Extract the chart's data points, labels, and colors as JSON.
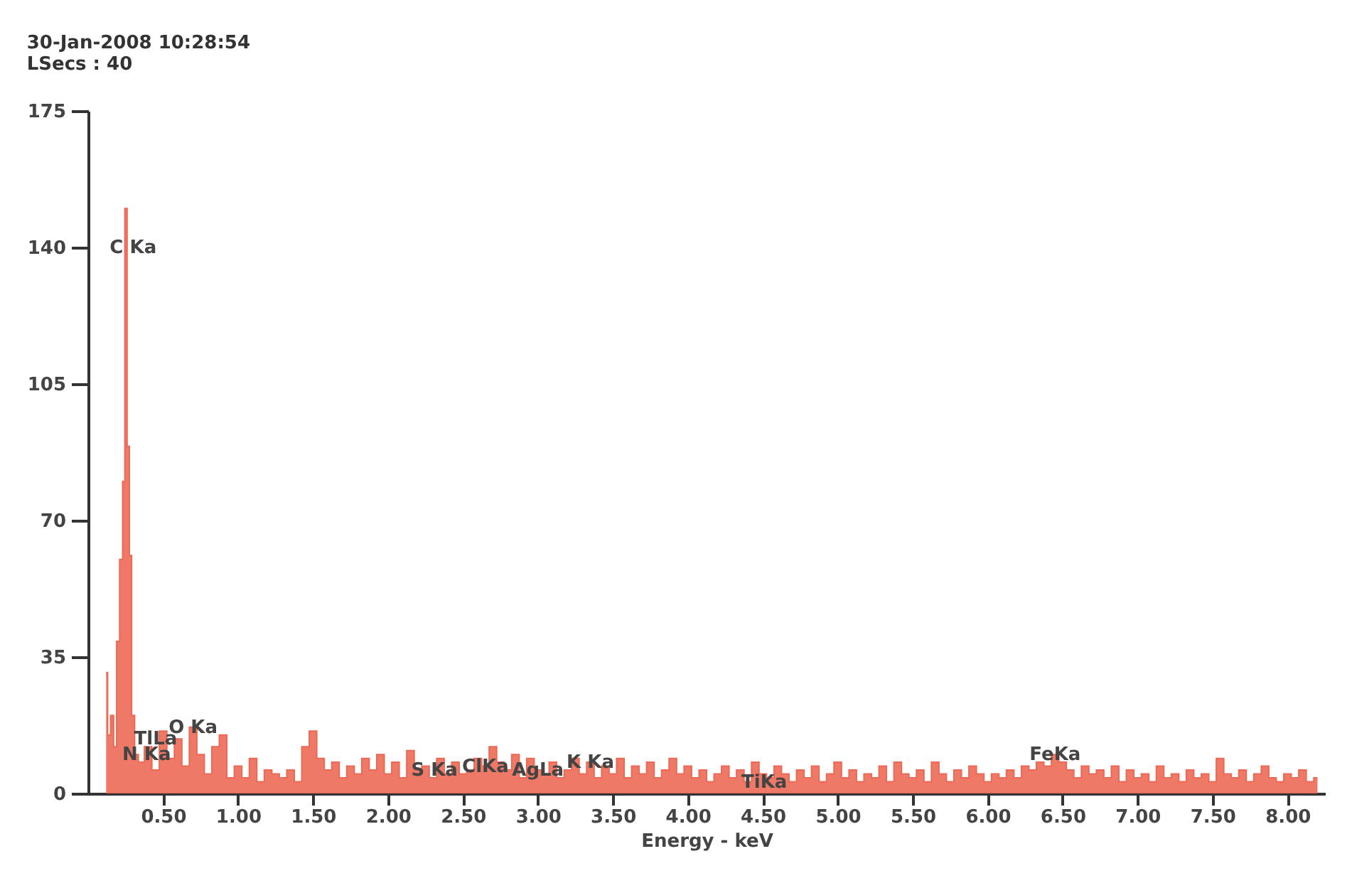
{
  "chart_data": {
    "type": "area",
    "title": "30-Jan-2008 10:28:54",
    "subtitle": "LSecs : 40",
    "xlabel": "Energy - keV",
    "xlim": [
      0,
      8.25
    ],
    "ylim": [
      0,
      175
    ],
    "xticks": [
      {
        "value": 0.5,
        "label": "0.50"
      },
      {
        "value": 1,
        "label": "1.00"
      },
      {
        "value": 1.5,
        "label": "1.50"
      },
      {
        "value": 2,
        "label": "2.00"
      },
      {
        "value": 2.5,
        "label": "2.50"
      },
      {
        "value": 3,
        "label": "3.00"
      },
      {
        "value": 3.5,
        "label": "3.50"
      },
      {
        "value": 4,
        "label": "4.00"
      },
      {
        "value": 4.5,
        "label": "4.50"
      },
      {
        "value": 5,
        "label": "5.00"
      },
      {
        "value": 5.5,
        "label": "5.50"
      },
      {
        "value": 6,
        "label": "6.00"
      },
      {
        "value": 6.5,
        "label": "6.50"
      },
      {
        "value": 7,
        "label": "7.00"
      },
      {
        "value": 7.5,
        "label": "7.50"
      },
      {
        "value": 8,
        "label": "8.00"
      }
    ],
    "yticks": [
      0,
      35,
      70,
      105,
      140,
      175
    ],
    "grid": false,
    "x": [
      0.12,
      0.14,
      0.16,
      0.18,
      0.2,
      0.22,
      0.24,
      0.25,
      0.27,
      0.28,
      0.3,
      0.32,
      0.35,
      0.4,
      0.45,
      0.5,
      0.55,
      0.6,
      0.65,
      0.7,
      0.75,
      0.8,
      0.85,
      0.9,
      0.95,
      1,
      1.05,
      1.1,
      1.15,
      1.2,
      1.25,
      1.3,
      1.35,
      1.4,
      1.45,
      1.5,
      1.55,
      1.6,
      1.65,
      1.7,
      1.75,
      1.8,
      1.85,
      1.9,
      1.95,
      2,
      2.05,
      2.1,
      2.15,
      2.2,
      2.25,
      2.3,
      2.35,
      2.4,
      2.45,
      2.5,
      2.55,
      2.6,
      2.65,
      2.7,
      2.75,
      2.8,
      2.85,
      2.9,
      2.95,
      3,
      3.05,
      3.1,
      3.15,
      3.2,
      3.25,
      3.3,
      3.35,
      3.4,
      3.45,
      3.5,
      3.55,
      3.6,
      3.65,
      3.7,
      3.75,
      3.8,
      3.85,
      3.9,
      3.95,
      4,
      4.05,
      4.1,
      4.15,
      4.2,
      4.25,
      4.3,
      4.35,
      4.4,
      4.45,
      4.5,
      4.55,
      4.6,
      4.65,
      4.7,
      4.75,
      4.8,
      4.85,
      4.9,
      4.95,
      5,
      5.05,
      5.1,
      5.15,
      5.2,
      5.25,
      5.3,
      5.35,
      5.4,
      5.45,
      5.5,
      5.55,
      5.6,
      5.65,
      5.7,
      5.75,
      5.8,
      5.85,
      5.9,
      5.95,
      6,
      6.05,
      6.1,
      6.15,
      6.2,
      6.25,
      6.3,
      6.35,
      6.4,
      6.45,
      6.5,
      6.55,
      6.6,
      6.65,
      6.7,
      6.75,
      6.8,
      6.85,
      6.9,
      6.95,
      7,
      7.05,
      7.1,
      7.15,
      7.2,
      7.25,
      7.3,
      7.35,
      7.4,
      7.45,
      7.5,
      7.55,
      7.6,
      7.65,
      7.7,
      7.75,
      7.8,
      7.85,
      7.9,
      7.95,
      8,
      8.05,
      8.1,
      8.15,
      8.2
    ],
    "series": [
      {
        "color": "#ec6a55",
        "values": [
          31,
          15,
          20,
          12,
          39,
          60,
          80,
          150,
          89,
          61,
          20,
          10,
          8,
          12,
          6,
          16,
          9,
          14,
          7,
          17,
          10,
          5,
          12,
          15,
          4,
          7,
          4,
          9,
          3,
          6,
          5,
          4,
          6,
          3,
          12,
          16,
          9,
          6,
          8,
          4,
          7,
          5,
          9,
          6,
          10,
          5,
          8,
          4,
          11,
          6,
          7,
          4,
          9,
          5,
          8,
          5,
          6,
          9,
          7,
          12,
          8,
          6,
          10,
          4,
          9,
          6,
          5,
          8,
          4,
          6,
          9,
          5,
          8,
          4,
          7,
          5,
          9,
          4,
          7,
          5,
          8,
          4,
          6,
          9,
          5,
          7,
          4,
          6,
          3,
          5,
          7,
          4,
          6,
          3,
          8,
          5,
          4,
          7,
          5,
          3,
          6,
          4,
          7,
          3,
          5,
          8,
          4,
          6,
          3,
          5,
          4,
          7,
          3,
          8,
          5,
          4,
          6,
          3,
          8,
          5,
          3,
          6,
          4,
          7,
          5,
          3,
          5,
          4,
          6,
          4,
          7,
          6,
          8,
          7,
          10,
          8,
          6,
          4,
          7,
          5,
          6,
          4,
          7,
          3,
          6,
          4,
          5,
          3,
          7,
          4,
          5,
          3,
          6,
          4,
          5,
          3,
          9,
          5,
          4,
          6,
          3,
          5,
          7,
          4,
          3,
          5,
          4,
          6,
          3,
          4
        ]
      }
    ],
    "annotations": [
      {
        "text": "C Ka",
        "x": 0.3,
        "y": 140
      },
      {
        "text": "O Ka",
        "x": 0.7,
        "y": 17
      },
      {
        "text": "TlLa",
        "x": 0.45,
        "y": 14
      },
      {
        "text": "N Ka",
        "x": 0.39,
        "y": 10
      },
      {
        "text": "S Ka",
        "x": 2.31,
        "y": 6
      },
      {
        "text": "ClKa",
        "x": 2.65,
        "y": 7
      },
      {
        "text": "AgLa",
        "x": 3.0,
        "y": 6
      },
      {
        "text": "K Ka",
        "x": 3.35,
        "y": 8
      },
      {
        "text": "TiKa",
        "x": 4.51,
        "y": 3
      },
      {
        "text": "FeKa",
        "x": 6.45,
        "y": 10
      }
    ]
  }
}
